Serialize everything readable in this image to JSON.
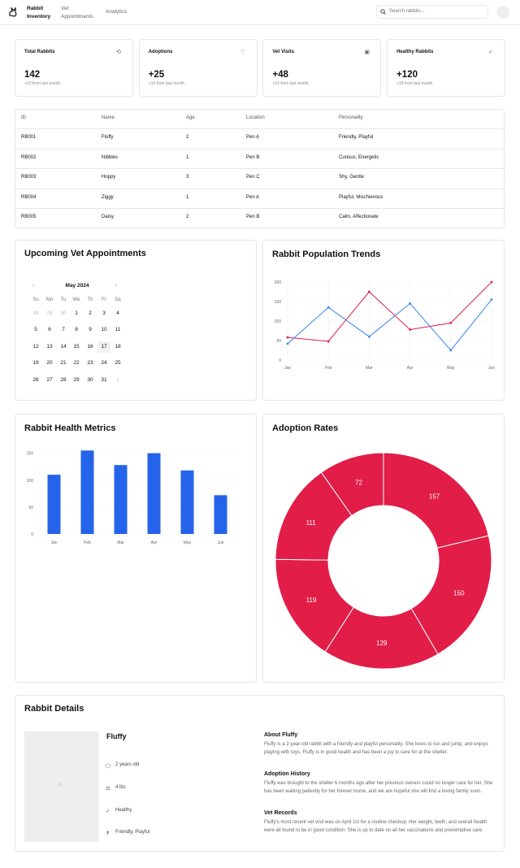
{
  "nav": {
    "brand": "Rabbit Inventory",
    "links": [
      "Vet Appointments",
      "Analytics"
    ],
    "search_placeholder": "Search rabbits..."
  },
  "stats": [
    {
      "title": "Total Rabbits",
      "value": "142",
      "change": "+20 from last month"
    },
    {
      "title": "Adoptions",
      "value": "+25",
      "change": "+10 from last month"
    },
    {
      "title": "Vet Visits",
      "value": "+48",
      "change": "+15 from last month"
    },
    {
      "title": "Healthy Rabbits",
      "value": "+120",
      "change": "+18 from last month"
    }
  ],
  "table": {
    "headers": [
      "ID",
      "Name",
      "Age",
      "Location",
      "Personality"
    ],
    "rows": [
      [
        "RB001",
        "Fluffy",
        2,
        "Pen A",
        "Friendly, Playful"
      ],
      [
        "RB002",
        "Nibbles",
        1,
        "Pen B",
        "Curious, Energetic"
      ],
      [
        "RB003",
        "Hoppy",
        3,
        "Pen C",
        "Shy, Gentle"
      ],
      [
        "RB004",
        "Ziggy",
        1,
        "Pen A",
        "Playful, Mischievous"
      ],
      [
        "RB005",
        "Daisy",
        2,
        "Pen B",
        "Calm, Affectionate"
      ]
    ]
  },
  "calendar": {
    "title": "Upcoming Vet Appointments",
    "month": "May 2024",
    "weekdays": [
      "Su",
      "Mo",
      "Tu",
      "We",
      "Th",
      "Fr",
      "Sa"
    ],
    "weeks": [
      [
        28,
        29,
        30,
        1,
        2,
        3,
        4
      ],
      [
        5,
        6,
        7,
        8,
        9,
        10,
        11
      ],
      [
        12,
        13,
        14,
        15,
        16,
        17,
        18
      ],
      [
        19,
        20,
        21,
        22,
        23,
        24,
        25
      ],
      [
        26,
        27,
        28,
        29,
        30,
        31,
        1
      ]
    ],
    "selected": 17
  },
  "chart_data": [
    {
      "type": "line",
      "title": "Rabbit Population Trends",
      "categories": [
        "Jan",
        "Feb",
        "Mar",
        "Apr",
        "May",
        "Jun"
      ],
      "series": [
        {
          "color": "#e11d48",
          "values": [
            58,
            48,
            175,
            78,
            95,
            200
          ]
        },
        {
          "color": "#3b82f6",
          "values": [
            42,
            135,
            60,
            145,
            25,
            155
          ]
        }
      ],
      "ylim": [
        0,
        200
      ],
      "yticks": [
        0,
        50,
        100,
        150,
        200
      ],
      "grid": true
    },
    {
      "type": "bar",
      "title": "Rabbit Health Metrics",
      "categories": [
        "Jan",
        "Feb",
        "Mar",
        "Apr",
        "May",
        "Jun"
      ],
      "values": [
        110,
        155,
        128,
        150,
        118,
        72
      ],
      "color": "#2563eb",
      "ylim": [
        0,
        160
      ],
      "yticks": [
        0,
        50,
        100,
        150
      ],
      "grid": true
    },
    {
      "type": "donut",
      "title": "Adoption Rates",
      "values": [
        157,
        150,
        129,
        119,
        111,
        72
      ],
      "color": "#e11d48"
    }
  ],
  "details": {
    "title": "Rabbit Details",
    "name": "Fluffy",
    "facts": [
      "2 years old",
      "4 lbs",
      "Healthy",
      "Friendly, Playful"
    ],
    "sections": [
      {
        "heading": "About Fluffy",
        "text": "Fluffy is a 2-year-old rabbit with a friendly and playful personality. She loves to run and jump, and enjoys playing with toys. Fluffy is in good health and has been a joy to care for at the shelter."
      },
      {
        "heading": "Adoption History",
        "text": "Fluffy was brought to the shelter 6 months ago after her previous owners could no longer care for her. She has been waiting patiently for her forever home, and we are hopeful she will find a loving family soon."
      },
      {
        "heading": "Vet Records",
        "text": "Fluffy's most recent vet visit was on April 1st for a routine checkup. Her weight, teeth, and overall health were all found to be in good condition. She is up to date on all her vaccinations and preventative care."
      }
    ]
  }
}
